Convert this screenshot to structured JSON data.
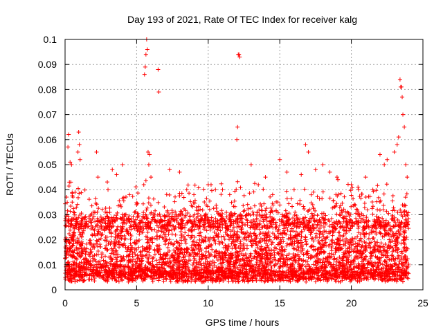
{
  "chart_data": {
    "type": "scatter",
    "title": "Day 193 of 2021, Rate Of TEC Index for receiver kalg",
    "xlabel": "GPS time / hours",
    "ylabel": "ROTI / TECUs",
    "xlim": [
      0,
      25
    ],
    "ylim": [
      0,
      0.1
    ],
    "x_ticks": [
      "0",
      "5",
      "10",
      "15",
      "20",
      "25"
    ],
    "y_ticks": [
      "0",
      "0.01",
      "0.02",
      "0.03",
      "0.04",
      "0.05",
      "0.06",
      "0.07",
      "0.08",
      "0.09",
      "0.1"
    ],
    "grid": true,
    "marker": "+",
    "color": "#ff0000",
    "x_range_of_data": [
      0,
      24
    ],
    "typical_y_range": [
      0.005,
      0.03
    ],
    "series": [
      {
        "x": [
          0.1,
          0.2,
          0.25,
          0.3,
          0.35,
          0.4,
          0.45,
          0.5,
          0.55,
          0.6,
          0.9,
          0.95,
          1.0,
          1.05,
          2.2,
          2.3,
          3.0,
          3.3,
          3.6,
          4.0,
          4.5,
          5.0,
          5.5,
          5.55,
          5.6,
          5.65,
          5.7,
          5.75,
          5.8,
          5.85,
          5.9,
          6.0,
          6.5,
          6.55,
          7.3,
          8.0,
          8.5,
          9.0,
          10.0,
          10.2,
          11.0,
          11.5,
          12.0,
          12.05,
          12.1,
          12.15,
          12.2,
          13.0,
          13.5,
          14.0,
          14.5,
          15.0,
          15.5,
          16.0,
          16.5,
          16.8,
          17.0,
          17.5,
          18.0,
          18.5,
          19.0,
          20.0,
          20.5,
          21.0,
          21.5,
          22.0,
          22.3,
          22.5,
          23.0,
          23.2,
          23.3,
          23.4,
          23.45,
          23.5,
          23.55,
          23.6,
          23.7,
          23.8,
          23.9
        ],
        "y": [
          0.037,
          0.057,
          0.062,
          0.043,
          0.051,
          0.043,
          0.05,
          0.035,
          0.037,
          0.031,
          0.055,
          0.063,
          0.058,
          0.052,
          0.055,
          0.045,
          0.04,
          0.048,
          0.046,
          0.05,
          0.038,
          0.034,
          0.042,
          0.086,
          0.089,
          0.094,
          0.1,
          0.096,
          0.055,
          0.05,
          0.054,
          0.045,
          0.088,
          0.079,
          0.048,
          0.047,
          0.04,
          0.038,
          0.042,
          0.042,
          0.04,
          0.038,
          0.06,
          0.065,
          0.094,
          0.094,
          0.093,
          0.05,
          0.042,
          0.045,
          0.038,
          0.052,
          0.047,
          0.04,
          0.046,
          0.058,
          0.055,
          0.048,
          0.05,
          0.047,
          0.045,
          0.042,
          0.04,
          0.045,
          0.04,
          0.054,
          0.05,
          0.052,
          0.055,
          0.058,
          0.061,
          0.084,
          0.081,
          0.081,
          0.077,
          0.07,
          0.065,
          0.05,
          0.045
        ]
      }
    ]
  }
}
